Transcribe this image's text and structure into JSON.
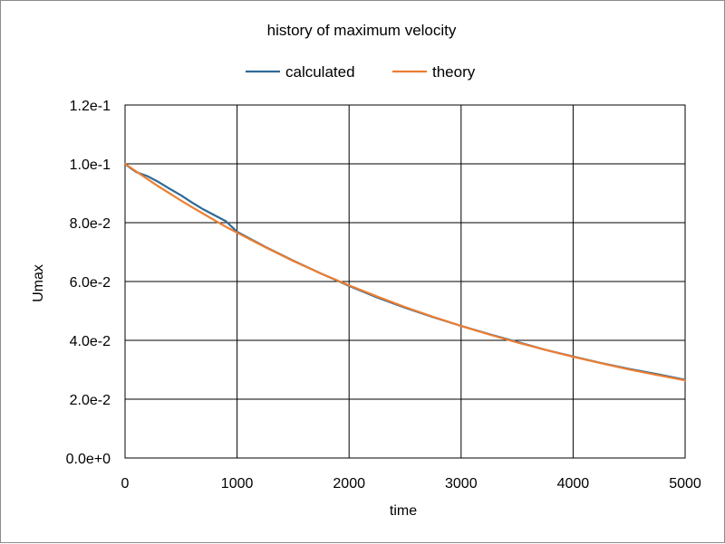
{
  "chart_data": {
    "type": "line",
    "title": "history of maximum velocity",
    "xlabel": "time",
    "ylabel": "Umax",
    "xlim": [
      0,
      5000
    ],
    "ylim": [
      0,
      0.12
    ],
    "x_ticks": [
      0,
      1000,
      2000,
      3000,
      4000,
      5000
    ],
    "x_tick_labels": [
      "0",
      "1000",
      "2000",
      "3000",
      "4000",
      "5000"
    ],
    "y_ticks": [
      0,
      0.02,
      0.04,
      0.06,
      0.08,
      0.1,
      0.12
    ],
    "y_tick_labels": [
      "0.0e+0",
      "2.0e-2",
      "4.0e-2",
      "6.0e-2",
      "8.0e-2",
      "1.0e-1",
      "1.2e-1"
    ],
    "grid": true,
    "legend_position": "top",
    "series": [
      {
        "name": "calculated",
        "color": "#2e6a96",
        "x": [
          0,
          50,
          100,
          200,
          300,
          400,
          500,
          600,
          700,
          800,
          900,
          1000,
          1250,
          1500,
          1750,
          2000,
          2250,
          2500,
          2750,
          3000,
          3250,
          3500,
          3750,
          4000,
          4250,
          4500,
          4750,
          5000
        ],
        "y": [
          0.1,
          0.0985,
          0.0972,
          0.0958,
          0.0938,
          0.0915,
          0.0893,
          0.0868,
          0.0845,
          0.0825,
          0.0805,
          0.0769,
          0.0718,
          0.0671,
          0.0627,
          0.0585,
          0.0546,
          0.0511,
          0.0479,
          0.0449,
          0.0421,
          0.0395,
          0.0368,
          0.0345,
          0.0323,
          0.0303,
          0.0285,
          0.0266
        ]
      },
      {
        "name": "theory",
        "color": "#ed7d31",
        "x": [
          0,
          50,
          100,
          200,
          300,
          400,
          500,
          600,
          700,
          800,
          900,
          1000,
          1250,
          1500,
          1750,
          2000,
          2250,
          2500,
          2750,
          3000,
          3250,
          3500,
          3750,
          4000,
          4250,
          4500,
          4750,
          5000
        ],
        "y": [
          0.1,
          0.0987,
          0.0974,
          0.0948,
          0.0923,
          0.0899,
          0.0875,
          0.0852,
          0.083,
          0.0808,
          0.0786,
          0.0766,
          0.0717,
          0.067,
          0.0627,
          0.0587,
          0.0549,
          0.0513,
          0.048,
          0.0449,
          0.042,
          0.0393,
          0.0368,
          0.0344,
          0.0322,
          0.0301,
          0.0282,
          0.0264
        ]
      }
    ]
  }
}
